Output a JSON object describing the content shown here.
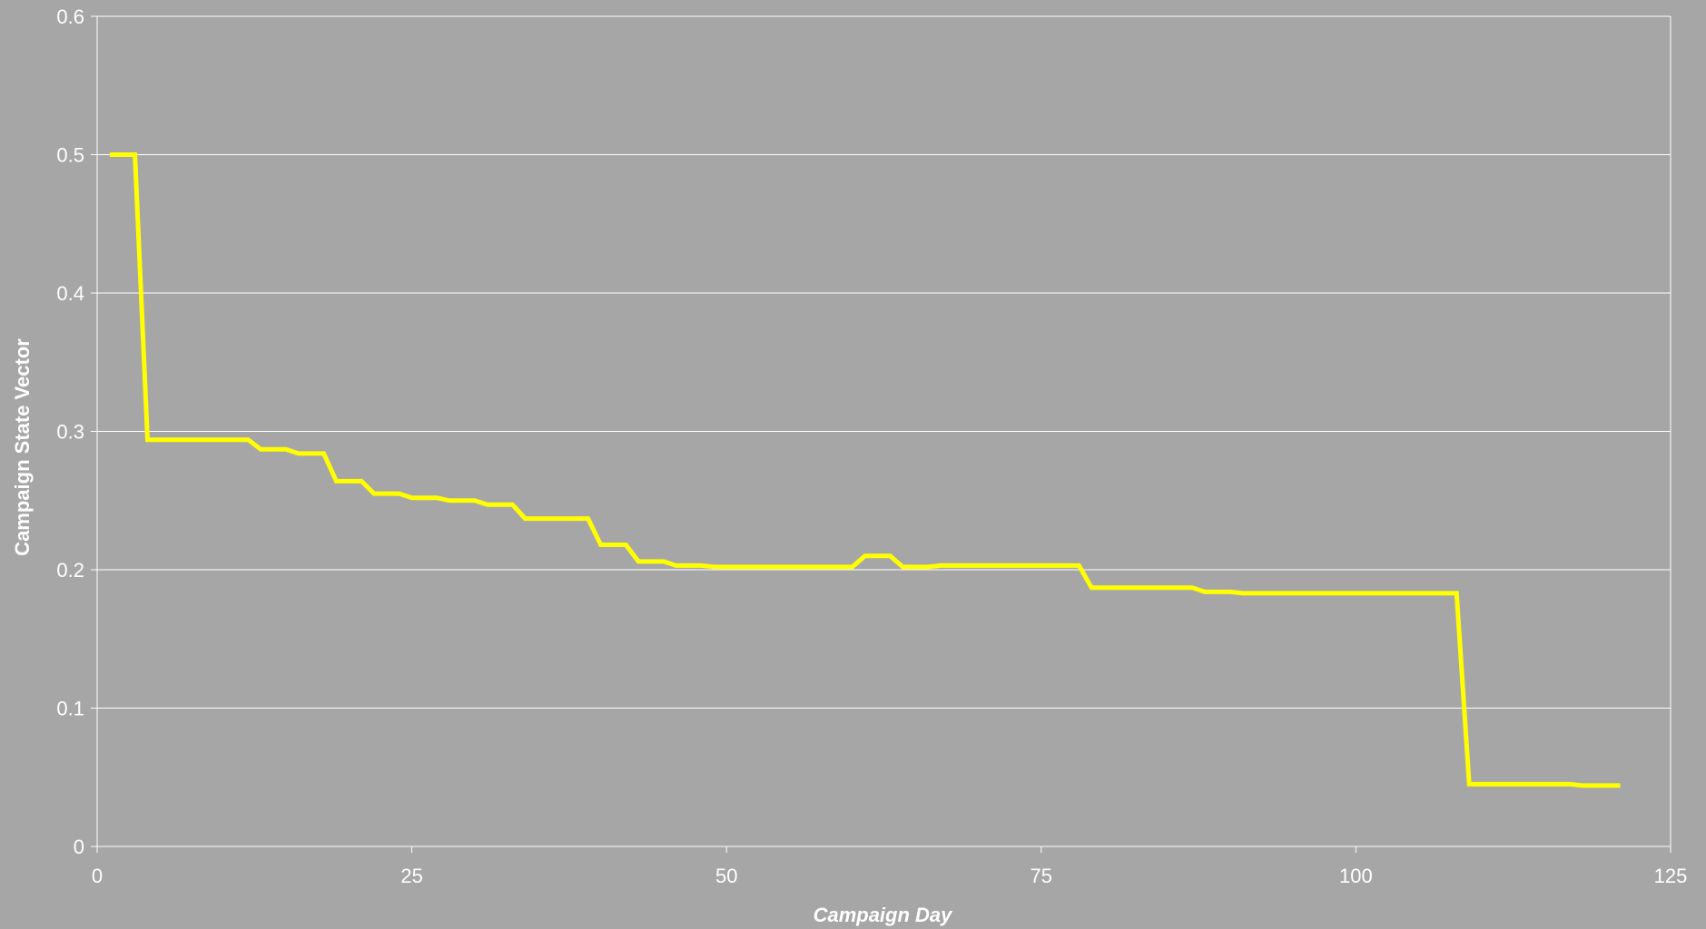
{
  "chart_data": {
    "type": "line",
    "title": "",
    "xlabel": "Campaign Day",
    "ylabel": "Campaign State Vector",
    "xlim": [
      0,
      125
    ],
    "ylim": [
      0,
      0.6
    ],
    "x_ticks": [
      0,
      25,
      50,
      75,
      100,
      125
    ],
    "y_ticks": [
      0,
      0.1,
      0.2,
      0.3,
      0.4,
      0.5,
      0.6
    ],
    "x_tick_labels": [
      "0",
      "25",
      "50",
      "75",
      "100",
      "125"
    ],
    "y_tick_labels": [
      "0",
      "0.1",
      "0.2",
      "0.3",
      "0.4",
      "0.5",
      "0.6"
    ],
    "grid": true,
    "colors": {
      "background": "#a6a6a6",
      "grid": "#ffffff",
      "line": "#ffff00",
      "text": "#ffffff"
    },
    "series": [
      {
        "points": [
          [
            1,
            0.5
          ],
          [
            2,
            0.5
          ],
          [
            3,
            0.5
          ],
          [
            4,
            0.294
          ],
          [
            5,
            0.294
          ],
          [
            6,
            0.294
          ],
          [
            7,
            0.294
          ],
          [
            8,
            0.294
          ],
          [
            9,
            0.294
          ],
          [
            10,
            0.294
          ],
          [
            11,
            0.294
          ],
          [
            12,
            0.294
          ],
          [
            13,
            0.287
          ],
          [
            14,
            0.287
          ],
          [
            15,
            0.287
          ],
          [
            16,
            0.284
          ],
          [
            17,
            0.284
          ],
          [
            18,
            0.284
          ],
          [
            19,
            0.264
          ],
          [
            20,
            0.264
          ],
          [
            21,
            0.264
          ],
          [
            22,
            0.255
          ],
          [
            23,
            0.255
          ],
          [
            24,
            0.255
          ],
          [
            25,
            0.252
          ],
          [
            26,
            0.252
          ],
          [
            27,
            0.252
          ],
          [
            28,
            0.25
          ],
          [
            29,
            0.25
          ],
          [
            30,
            0.25
          ],
          [
            31,
            0.247
          ],
          [
            32,
            0.247
          ],
          [
            33,
            0.247
          ],
          [
            34,
            0.237
          ],
          [
            35,
            0.237
          ],
          [
            36,
            0.237
          ],
          [
            37,
            0.237
          ],
          [
            38,
            0.237
          ],
          [
            39,
            0.237
          ],
          [
            40,
            0.218
          ],
          [
            41,
            0.218
          ],
          [
            42,
            0.218
          ],
          [
            43,
            0.206
          ],
          [
            44,
            0.206
          ],
          [
            45,
            0.206
          ],
          [
            46,
            0.203
          ],
          [
            47,
            0.203
          ],
          [
            48,
            0.203
          ],
          [
            49,
            0.202
          ],
          [
            50,
            0.202
          ],
          [
            51,
            0.202
          ],
          [
            52,
            0.202
          ],
          [
            53,
            0.202
          ],
          [
            54,
            0.202
          ],
          [
            55,
            0.202
          ],
          [
            56,
            0.202
          ],
          [
            57,
            0.202
          ],
          [
            58,
            0.202
          ],
          [
            59,
            0.202
          ],
          [
            60,
            0.202
          ],
          [
            61,
            0.21
          ],
          [
            62,
            0.21
          ],
          [
            63,
            0.21
          ],
          [
            64,
            0.202
          ],
          [
            65,
            0.202
          ],
          [
            66,
            0.202
          ],
          [
            67,
            0.203
          ],
          [
            68,
            0.203
          ],
          [
            69,
            0.203
          ],
          [
            70,
            0.203
          ],
          [
            71,
            0.203
          ],
          [
            72,
            0.203
          ],
          [
            73,
            0.203
          ],
          [
            74,
            0.203
          ],
          [
            75,
            0.203
          ],
          [
            76,
            0.203
          ],
          [
            77,
            0.203
          ],
          [
            78,
            0.203
          ],
          [
            79,
            0.187
          ],
          [
            80,
            0.187
          ],
          [
            81,
            0.187
          ],
          [
            82,
            0.187
          ],
          [
            83,
            0.187
          ],
          [
            84,
            0.187
          ],
          [
            85,
            0.187
          ],
          [
            86,
            0.187
          ],
          [
            87,
            0.187
          ],
          [
            88,
            0.184
          ],
          [
            89,
            0.184
          ],
          [
            90,
            0.184
          ],
          [
            91,
            0.183
          ],
          [
            92,
            0.183
          ],
          [
            93,
            0.183
          ],
          [
            94,
            0.183
          ],
          [
            95,
            0.183
          ],
          [
            96,
            0.183
          ],
          [
            97,
            0.183
          ],
          [
            98,
            0.183
          ],
          [
            99,
            0.183
          ],
          [
            100,
            0.183
          ],
          [
            101,
            0.183
          ],
          [
            102,
            0.183
          ],
          [
            103,
            0.183
          ],
          [
            104,
            0.183
          ],
          [
            105,
            0.183
          ],
          [
            106,
            0.183
          ],
          [
            107,
            0.183
          ],
          [
            108,
            0.183
          ],
          [
            109,
            0.045
          ],
          [
            110,
            0.045
          ],
          [
            111,
            0.045
          ],
          [
            112,
            0.045
          ],
          [
            113,
            0.045
          ],
          [
            114,
            0.045
          ],
          [
            115,
            0.045
          ],
          [
            116,
            0.045
          ],
          [
            117,
            0.045
          ],
          [
            118,
            0.044
          ],
          [
            119,
            0.044
          ],
          [
            120,
            0.044
          ],
          [
            121,
            0.044
          ]
        ]
      }
    ]
  }
}
